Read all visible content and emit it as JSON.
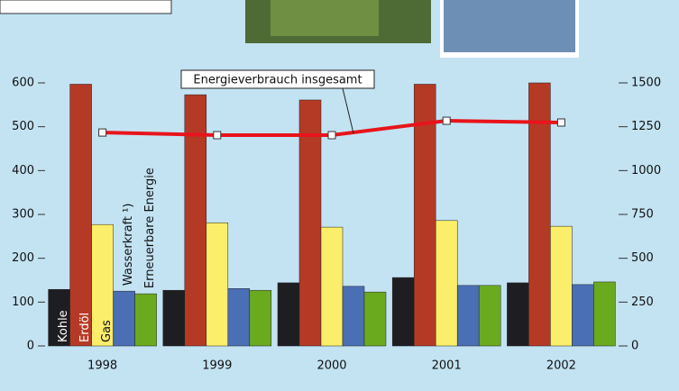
{
  "chart_data": {
    "type": "bar",
    "categories": [
      "1998",
      "1999",
      "2000",
      "2001",
      "2002"
    ],
    "series": [
      {
        "name": "Kohle",
        "color": "#1e1e22",
        "values": [
          129,
          127,
          144,
          156,
          144
        ]
      },
      {
        "name": "Erdöl",
        "color": "#b53a26",
        "values": [
          597,
          573,
          561,
          597,
          600
        ]
      },
      {
        "name": "Gas",
        "color": "#fbee6a",
        "values": [
          277,
          281,
          271,
          286,
          273
        ]
      },
      {
        "name": "Wasserkraft ¹)",
        "color": "#4a6fb5",
        "values": [
          125,
          131,
          136,
          138,
          140
        ]
      },
      {
        "name": "Erneuerbare Energie",
        "color": "#6aaa1f",
        "values": [
          119,
          127,
          123,
          138,
          146
        ]
      },
      {
        "name": "Energieverbrauch insgesamt",
        "color": "#e8141b",
        "type": "line",
        "axis": "y2",
        "values": [
          1217,
          1202,
          1202,
          1284,
          1274
        ]
      }
    ],
    "ylim": [
      0,
      600
    ],
    "yticks": [
      0,
      100,
      200,
      300,
      400,
      500,
      600
    ],
    "y2lim": [
      0,
      1500
    ],
    "y2ticks": [
      0,
      250,
      500,
      750,
      1000,
      1250,
      1500
    ]
  }
}
